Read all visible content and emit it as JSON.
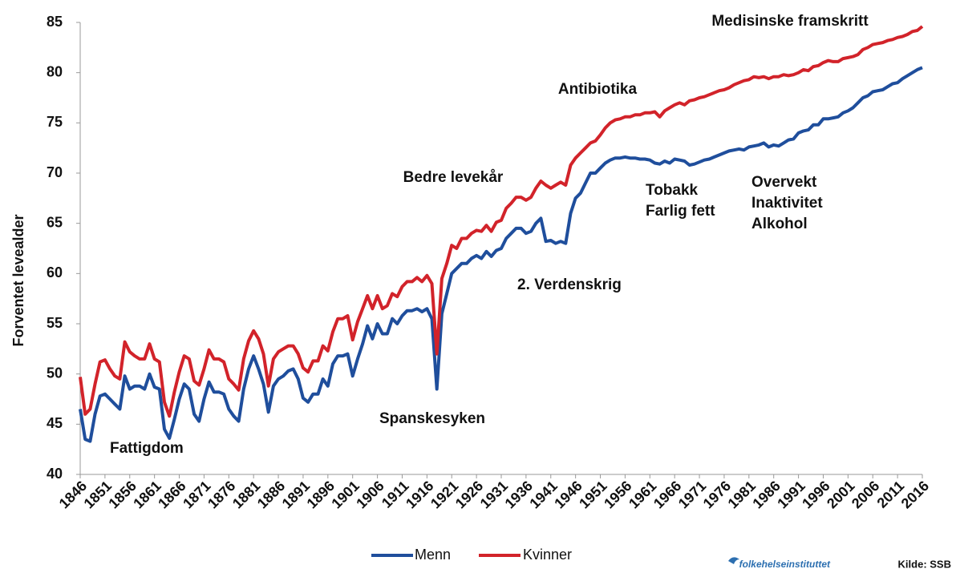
{
  "chart_data": {
    "type": "line",
    "y_label": "Forventet levealder",
    "x": [
      1846,
      1847,
      1848,
      1849,
      1850,
      1851,
      1852,
      1853,
      1854,
      1855,
      1856,
      1857,
      1858,
      1859,
      1860,
      1861,
      1862,
      1863,
      1864,
      1865,
      1866,
      1867,
      1868,
      1869,
      1870,
      1871,
      1872,
      1873,
      1874,
      1875,
      1876,
      1877,
      1878,
      1879,
      1880,
      1881,
      1882,
      1883,
      1884,
      1885,
      1886,
      1887,
      1888,
      1889,
      1890,
      1891,
      1892,
      1893,
      1894,
      1895,
      1896,
      1897,
      1898,
      1899,
      1900,
      1901,
      1902,
      1903,
      1904,
      1905,
      1906,
      1907,
      1908,
      1909,
      1910,
      1911,
      1912,
      1913,
      1914,
      1915,
      1916,
      1917,
      1918,
      1919,
      1920,
      1921,
      1922,
      1923,
      1924,
      1925,
      1926,
      1927,
      1928,
      1929,
      1930,
      1931,
      1932,
      1933,
      1934,
      1935,
      1936,
      1937,
      1938,
      1939,
      1940,
      1941,
      1942,
      1943,
      1944,
      1945,
      1946,
      1947,
      1948,
      1949,
      1950,
      1951,
      1952,
      1953,
      1954,
      1955,
      1956,
      1957,
      1958,
      1959,
      1960,
      1961,
      1962,
      1963,
      1964,
      1965,
      1966,
      1967,
      1968,
      1969,
      1970,
      1971,
      1972,
      1973,
      1974,
      1975,
      1976,
      1977,
      1978,
      1979,
      1980,
      1981,
      1982,
      1983,
      1984,
      1985,
      1986,
      1987,
      1988,
      1989,
      1990,
      1991,
      1992,
      1993,
      1994,
      1995,
      1996,
      1997,
      1998,
      1999,
      2000,
      2001,
      2002,
      2003,
      2004,
      2005,
      2006,
      2007,
      2008,
      2009,
      2010,
      2011,
      2012,
      2013,
      2014,
      2015,
      2016
    ],
    "series": [
      {
        "name": "Menn",
        "color": "#1f4e9c",
        "values": [
          46.5,
          43.5,
          43.3,
          46,
          47.8,
          48,
          47.5,
          47,
          46.5,
          49.8,
          48.5,
          48.8,
          48.8,
          48.5,
          50,
          48.7,
          48.5,
          44.5,
          43.6,
          45.5,
          47.5,
          49,
          48.5,
          46,
          45.3,
          47.5,
          49.2,
          48.2,
          48.2,
          48,
          46.5,
          45.8,
          45.3,
          48.5,
          50.5,
          51.8,
          50.5,
          49,
          46.2,
          48.8,
          49.5,
          49.8,
          50.3,
          50.5,
          49.5,
          47.6,
          47.2,
          48,
          48,
          49.5,
          48.8,
          51,
          51.8,
          51.8,
          52,
          49.8,
          51.5,
          53,
          54.8,
          53.5,
          55,
          54,
          54,
          55.5,
          55,
          55.8,
          56.3,
          56.3,
          56.5,
          56.2,
          56.5,
          55.5,
          48.5,
          56,
          58,
          60,
          60.5,
          61,
          61,
          61.5,
          61.8,
          61.5,
          62.2,
          61.7,
          62.3,
          62.5,
          63.5,
          64,
          64.5,
          64.5,
          64,
          64.2,
          65,
          65.5,
          63.2,
          63.3,
          63,
          63.2,
          63,
          66,
          67.5,
          68,
          69,
          70,
          70,
          70.5,
          71,
          71.3,
          71.5,
          71.5,
          71.6,
          71.5,
          71.5,
          71.4,
          71.4,
          71.3,
          71,
          70.9,
          71.2,
          71,
          71.4,
          71.3,
          71.2,
          70.8,
          70.9,
          71.1,
          71.3,
          71.4,
          71.6,
          71.8,
          72,
          72.2,
          72.3,
          72.4,
          72.3,
          72.6,
          72.7,
          72.8,
          73,
          72.6,
          72.8,
          72.7,
          73,
          73.3,
          73.4,
          74,
          74.2,
          74.3,
          74.8,
          74.8,
          75.4,
          75.4,
          75.5,
          75.6,
          76,
          76.2,
          76.5,
          77,
          77.5,
          77.7,
          78.1,
          78.2,
          78.3,
          78.6,
          78.9,
          79,
          79.4,
          79.7,
          80,
          80.3,
          80.5
        ]
      },
      {
        "name": "Kvinner",
        "color": "#d2232a",
        "values": [
          49.7,
          46,
          46.5,
          49,
          51.2,
          51.4,
          50.5,
          49.8,
          49.5,
          53.2,
          52.2,
          51.8,
          51.5,
          51.5,
          53,
          51.5,
          51.2,
          47.2,
          45.8,
          48.2,
          50.2,
          51.8,
          51.5,
          49.3,
          48.9,
          50.5,
          52.4,
          51.5,
          51.5,
          51.2,
          49.5,
          49,
          48.4,
          51.5,
          53.3,
          54.3,
          53.5,
          52,
          48.8,
          51.5,
          52.2,
          52.5,
          52.8,
          52.8,
          52,
          50.6,
          50.2,
          51.3,
          51.3,
          52.8,
          52.3,
          54.2,
          55.5,
          55.5,
          55.8,
          53.4,
          55.2,
          56.5,
          57.8,
          56.5,
          57.8,
          56.5,
          56.8,
          58,
          57.7,
          58.7,
          59.2,
          59.2,
          59.6,
          59.2,
          59.8,
          59,
          52,
          59.5,
          61,
          62.8,
          62.5,
          63.5,
          63.5,
          64,
          64.3,
          64.2,
          64.8,
          64.2,
          65.1,
          65.3,
          66.5,
          67,
          67.6,
          67.6,
          67.3,
          67.6,
          68.5,
          69.2,
          68.8,
          68.5,
          68.8,
          69.1,
          68.8,
          70.8,
          71.5,
          72,
          72.5,
          73,
          73.2,
          73.8,
          74.5,
          75,
          75.3,
          75.4,
          75.6,
          75.6,
          75.8,
          75.8,
          76,
          76,
          76.1,
          75.6,
          76.2,
          76.5,
          76.8,
          77,
          76.8,
          77.2,
          77.3,
          77.5,
          77.6,
          77.8,
          78,
          78.2,
          78.3,
          78.5,
          78.8,
          79,
          79.2,
          79.3,
          79.6,
          79.5,
          79.6,
          79.4,
          79.6,
          79.6,
          79.8,
          79.7,
          79.8,
          80,
          80.3,
          80.2,
          80.6,
          80.7,
          81,
          81.2,
          81.1,
          81.1,
          81.4,
          81.5,
          81.6,
          81.8,
          82.3,
          82.5,
          82.8,
          82.9,
          83,
          83.2,
          83.3,
          83.5,
          83.6,
          83.8,
          84.1,
          84.2,
          84.6
        ]
      }
    ],
    "xlim": [
      1846,
      2016
    ],
    "xticks": [
      1846,
      1851,
      1856,
      1861,
      1866,
      1871,
      1876,
      1881,
      1886,
      1891,
      1896,
      1901,
      1906,
      1911,
      1916,
      1921,
      1926,
      1931,
      1936,
      1941,
      1946,
      1951,
      1956,
      1961,
      1966,
      1971,
      1976,
      1981,
      1986,
      1991,
      1996,
      2001,
      2006,
      2011,
      2016
    ],
    "ylim": [
      40,
      85
    ],
    "yticks": [
      40,
      45,
      50,
      55,
      60,
      65,
      70,
      75,
      80,
      85
    ],
    "legend": "bottom",
    "annotations": [
      [
        "Medisinske  framskritt"
      ],
      [
        "Antibiotika"
      ],
      [
        "Bedre levekår"
      ],
      [
        "Tobakk",
        "Farlig fett"
      ],
      [
        "Overvekt",
        "Inaktivitet",
        "Alkohol"
      ],
      [
        "2. Verdenskrig"
      ],
      [
        "Spanskesyken"
      ],
      [
        "Fattigdom"
      ]
    ],
    "logo": "folkehelseinstituttet",
    "source": "Kilde: SSB"
  }
}
